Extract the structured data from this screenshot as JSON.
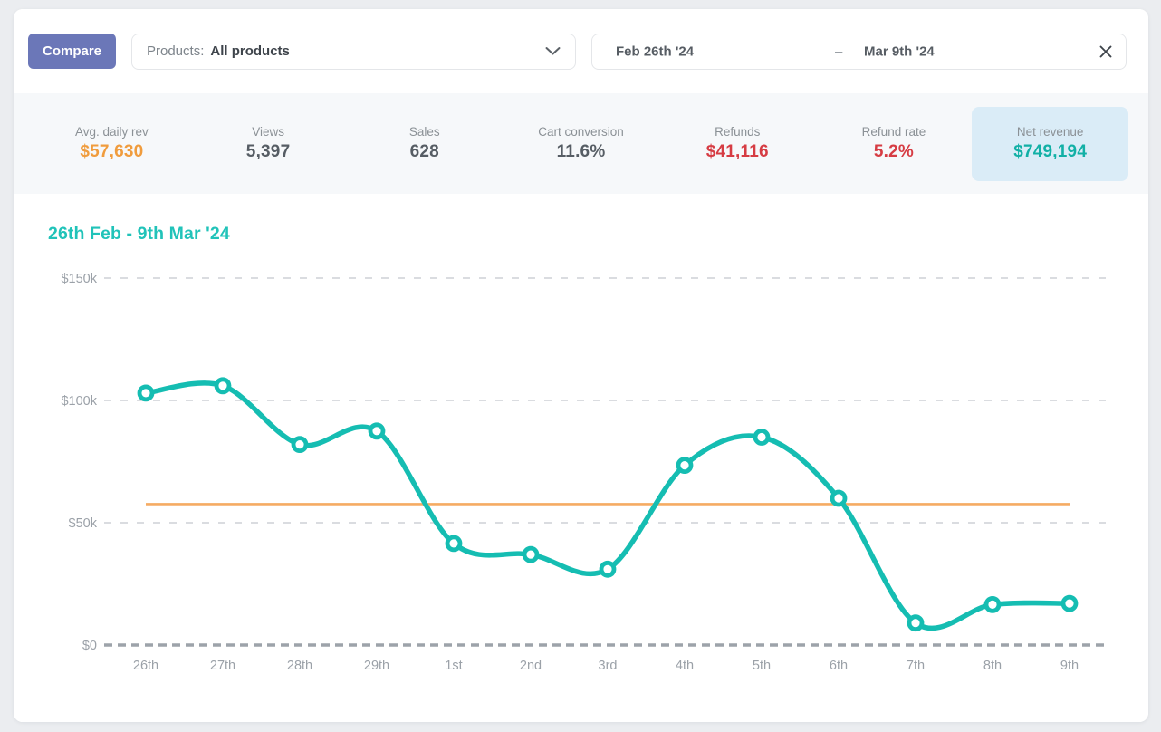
{
  "toolbar": {
    "compare_label": "Compare",
    "products_label": "Products:",
    "products_value": "All products",
    "date_start": "Feb 26th '24",
    "date_separator": "–",
    "date_end": "Mar 9th '24"
  },
  "stats": [
    {
      "label": "Avg. daily rev",
      "value": "$57,630",
      "color": "#f09c3d"
    },
    {
      "label": "Views",
      "value": "5,397",
      "color": "#565d64"
    },
    {
      "label": "Sales",
      "value": "628",
      "color": "#565d64"
    },
    {
      "label": "Cart conversion",
      "value": "11.6%",
      "color": "#565d64"
    },
    {
      "label": "Refunds",
      "value": "$41,116",
      "color": "#d63c43"
    },
    {
      "label": "Refund rate",
      "value": "5.2%",
      "color": "#d63c43"
    },
    {
      "label": "Net revenue",
      "value": "$749,194",
      "color": "#12b0a6",
      "highlighted": true
    }
  ],
  "chart_data": {
    "type": "line",
    "title": "26th Feb - 9th Mar '24",
    "categories": [
      "26th",
      "27th",
      "28th",
      "29th",
      "1st",
      "2nd",
      "3rd",
      "4th",
      "5th",
      "6th",
      "7th",
      "8th",
      "9th"
    ],
    "values": [
      103000,
      106000,
      82000,
      87500,
      41500,
      37000,
      31000,
      73500,
      85000,
      60000,
      9000,
      16500,
      17000
    ],
    "series_name": "Daily revenue",
    "average_line": 57630,
    "y_ticks": [
      "$150k",
      "$100k",
      "$50k",
      "$0"
    ],
    "y_tick_values": [
      150000,
      100000,
      50000,
      0
    ],
    "ylim": [
      0,
      150000
    ],
    "xlabel": "",
    "ylabel": "",
    "grid": true,
    "legend": false,
    "line_color": "#15bdb2",
    "avg_line_color": "#f5ab63",
    "title_color": "#21c3b9"
  },
  "colors": {
    "page_background": "#ebedf0",
    "card_background": "#ffffff",
    "stats_background": "#f6f8fa",
    "highlight_tile": "#daecf7",
    "accent_button": "#6b77b8"
  }
}
